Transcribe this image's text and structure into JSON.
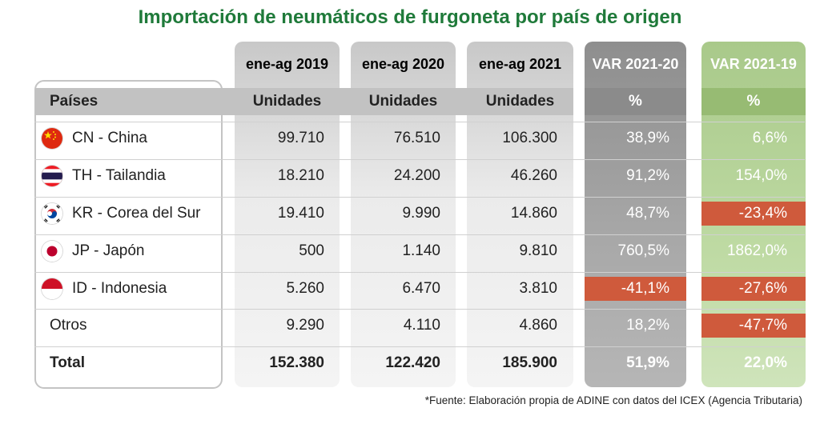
{
  "title": "Importación de neumáticos de furgoneta por país de origen",
  "colors": {
    "title_green": "#1f7a3a",
    "negative_red": "#cf5a3c",
    "var_2021_20_column": "#8b8b8b",
    "var_2021_19_column": "#97bb73"
  },
  "chart_data": {
    "type": "table",
    "title": "Importación de neumáticos de furgoneta por país de origen",
    "columns": [
      {
        "header": "ene-ag 2019",
        "unit": "Unidades"
      },
      {
        "header": "ene-ag 2020",
        "unit": "Unidades"
      },
      {
        "header": "ene-ag 2021",
        "unit": "Unidades"
      },
      {
        "header": "VAR 2021-20",
        "unit": "%"
      },
      {
        "header": "VAR 2021-19",
        "unit": "%"
      }
    ],
    "row_header": "Países",
    "rows": [
      {
        "label": "CN - China",
        "flag": "china-flag-icon",
        "values": [
          "99.710",
          "76.510",
          "106.300",
          "38,9%",
          "6,6%"
        ],
        "negative": [
          false,
          false
        ]
      },
      {
        "label": "TH - Tailandia",
        "flag": "thailand-flag-icon",
        "values": [
          "18.210",
          "24.200",
          "46.260",
          "91,2%",
          "154,0%"
        ],
        "negative": [
          false,
          false
        ]
      },
      {
        "label": "KR - Corea del Sur",
        "flag": "korea-flag-icon",
        "values": [
          "19.410",
          "9.990",
          "14.860",
          "48,7%",
          "-23,4%"
        ],
        "negative": [
          false,
          true
        ]
      },
      {
        "label": "JP - Japón",
        "flag": "japan-flag-icon",
        "values": [
          "500",
          "1.140",
          "9.810",
          "760,5%",
          "1862,0%"
        ],
        "negative": [
          false,
          false
        ]
      },
      {
        "label": "ID - Indonesia",
        "flag": "indonesia-flag-icon",
        "values": [
          "5.260",
          "6.470",
          "3.810",
          "-41,1%",
          "-27,6%"
        ],
        "negative": [
          true,
          true
        ]
      },
      {
        "label": "Otros",
        "flag": null,
        "values": [
          "9.290",
          "4.110",
          "4.860",
          "18,2%",
          "-47,7%"
        ],
        "negative": [
          false,
          true
        ]
      }
    ],
    "total": {
      "label": "Total",
      "values": [
        "152.380",
        "122.420",
        "185.900",
        "51,9%",
        "22,0%"
      ]
    }
  },
  "footnote": "*Fuente: Elaboración propia de ADINE con datos del ICEX (Agencia Tributaria)"
}
